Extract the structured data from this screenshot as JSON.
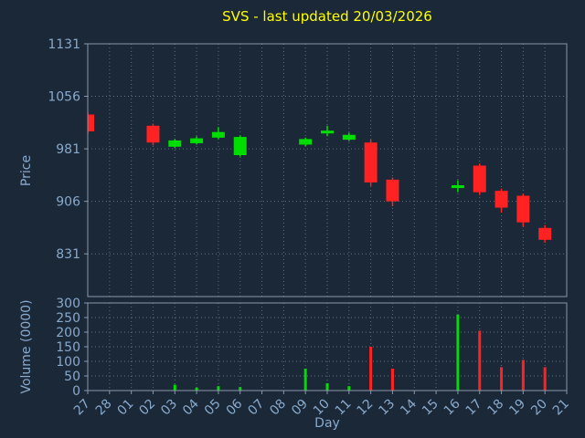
{
  "title": "SVS - last updated 20/03/2026",
  "colors": {
    "background": "#1b2838",
    "title": "#ffff00",
    "axis_text": "#88aacc",
    "grid": "#607080",
    "spine": "#8899aa",
    "up": "#00dd00",
    "down": "#ff2222"
  },
  "chart_data": {
    "type": "candlestick",
    "xlabel": "Day",
    "x_categories": [
      "27",
      "28",
      "01",
      "02",
      "03",
      "04",
      "05",
      "06",
      "07",
      "08",
      "09",
      "10",
      "11",
      "12",
      "13",
      "14",
      "15",
      "16",
      "17",
      "18",
      "19",
      "20",
      "21"
    ],
    "price_panel": {
      "ylabel": "Price",
      "ylim": [
        770,
        1131
      ],
      "yticks": [
        1131,
        1056,
        981,
        906,
        831
      ],
      "candles": [
        {
          "day": "27",
          "open": 1030,
          "high": 1033,
          "low": 1003,
          "close": 1006
        },
        {
          "day": "02",
          "open": 1014,
          "high": 1017,
          "low": 986,
          "close": 990
        },
        {
          "day": "03",
          "open": 984,
          "high": 995,
          "low": 982,
          "close": 993
        },
        {
          "day": "04",
          "open": 989,
          "high": 999,
          "low": 987,
          "close": 996
        },
        {
          "day": "05",
          "open": 997,
          "high": 1012,
          "low": 995,
          "close": 1005
        },
        {
          "day": "06",
          "open": 972,
          "high": 1000,
          "low": 970,
          "close": 998
        },
        {
          "day": "09",
          "open": 987,
          "high": 997,
          "low": 985,
          "close": 995
        },
        {
          "day": "10",
          "open": 1003,
          "high": 1014,
          "low": 999,
          "close": 1007
        },
        {
          "day": "11",
          "open": 994,
          "high": 1004,
          "low": 992,
          "close": 1001
        },
        {
          "day": "12",
          "open": 990,
          "high": 994,
          "low": 928,
          "close": 933
        },
        {
          "day": "13",
          "open": 937,
          "high": 940,
          "low": 899,
          "close": 906
        },
        {
          "day": "16",
          "open": 925,
          "high": 936,
          "low": 919,
          "close": 929
        },
        {
          "day": "17",
          "open": 957,
          "high": 960,
          "low": 915,
          "close": 919
        },
        {
          "day": "18",
          "open": 921,
          "high": 924,
          "low": 890,
          "close": 897
        },
        {
          "day": "19",
          "open": 914,
          "high": 917,
          "low": 870,
          "close": 876
        },
        {
          "day": "20",
          "open": 868,
          "high": 872,
          "low": 847,
          "close": 851
        }
      ]
    },
    "volume_panel": {
      "ylabel": "Volume (0000)",
      "ylim": [
        0,
        300
      ],
      "yticks": [
        300,
        250,
        200,
        150,
        100,
        50,
        0
      ],
      "bars": [
        {
          "day": "03",
          "value": 20,
          "direction": "up"
        },
        {
          "day": "04",
          "value": 10,
          "direction": "up"
        },
        {
          "day": "05",
          "value": 15,
          "direction": "up"
        },
        {
          "day": "06",
          "value": 12,
          "direction": "up"
        },
        {
          "day": "09",
          "value": 75,
          "direction": "up"
        },
        {
          "day": "10",
          "value": 25,
          "direction": "up"
        },
        {
          "day": "11",
          "value": 15,
          "direction": "up"
        },
        {
          "day": "12",
          "value": 150,
          "direction": "down"
        },
        {
          "day": "13",
          "value": 75,
          "direction": "down"
        },
        {
          "day": "16",
          "value": 260,
          "direction": "up"
        },
        {
          "day": "17",
          "value": 205,
          "direction": "down"
        },
        {
          "day": "18",
          "value": 80,
          "direction": "down"
        },
        {
          "day": "19",
          "value": 105,
          "direction": "down"
        },
        {
          "day": "20",
          "value": 80,
          "direction": "down"
        }
      ]
    }
  }
}
